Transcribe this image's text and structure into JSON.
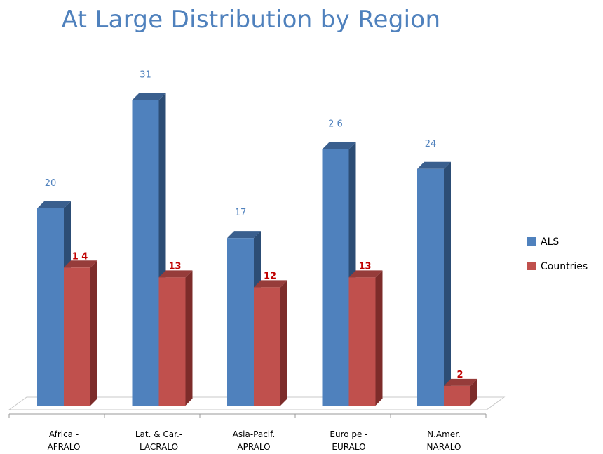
{
  "chart_data": {
    "type": "bar",
    "title": "At Large Distribution by Region",
    "categories": [
      [
        "Africa -",
        "AFRALO"
      ],
      [
        "Lat. & Car.-",
        "LACRALO"
      ],
      [
        "Asia-Pacif.",
        "APRALO"
      ],
      [
        "Euro pe -",
        "EURALO"
      ],
      [
        "N.Amer.",
        "NARALO"
      ]
    ],
    "series": [
      {
        "name": "ALS",
        "values": [
          20,
          31,
          17,
          26,
          24
        ],
        "color": "#4f81bd",
        "side": "#2c4d75",
        "top": "#3a5f8e",
        "label_color": "#4f81bd"
      },
      {
        "name": "Countries",
        "values": [
          14,
          13,
          12,
          13,
          2
        ],
        "color": "#c0504d",
        "side": "#7d2c2a",
        "top": "#963c3a",
        "label_color": "#c00000"
      }
    ],
    "value_labels": [
      [
        "20",
        "31",
        "17",
        "2 6",
        "24"
      ],
      [
        "1 4",
        "13",
        "12",
        "13",
        "2"
      ]
    ],
    "ylim": [
      0,
      31
    ],
    "grid": false,
    "legend": "right"
  }
}
